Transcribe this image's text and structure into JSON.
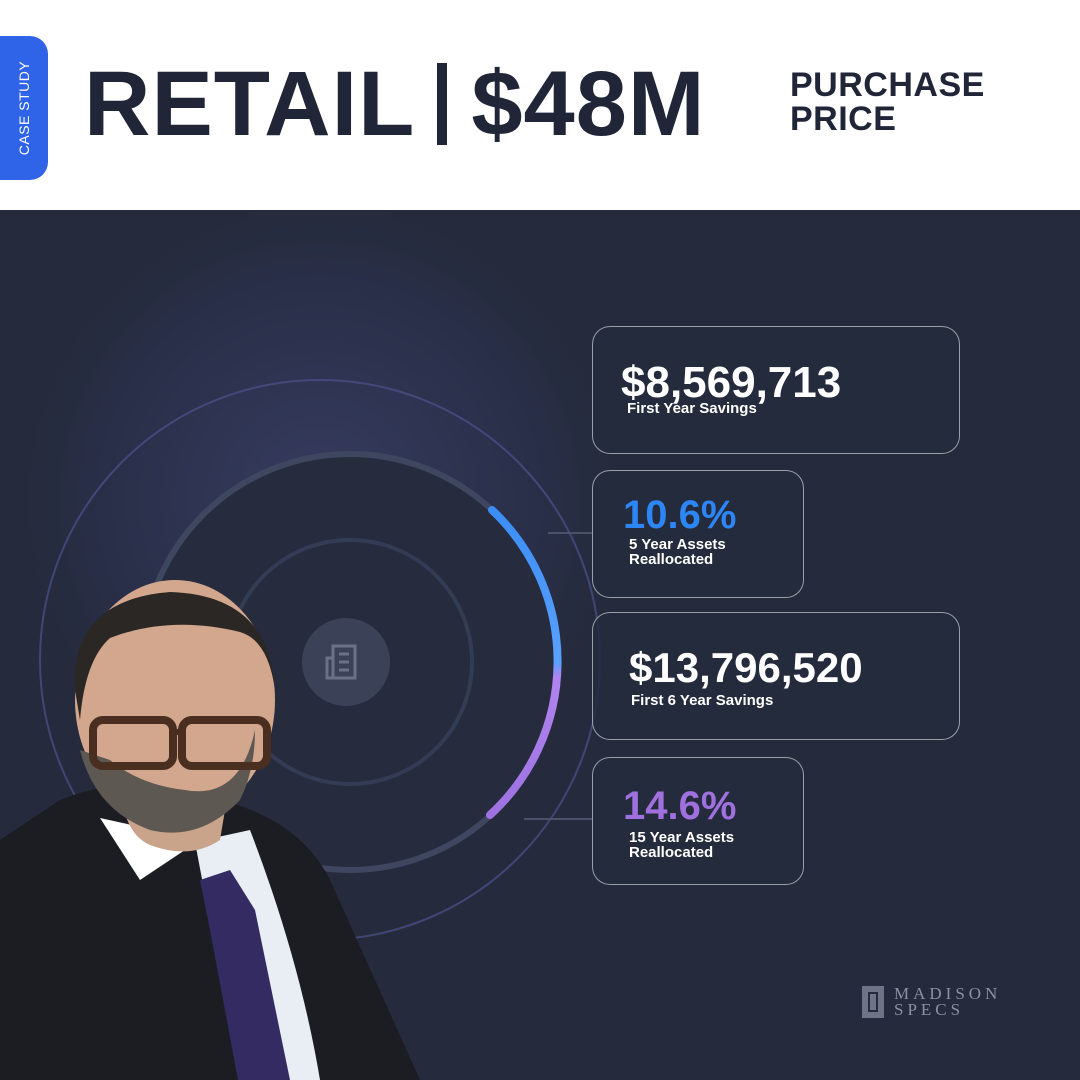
{
  "header": {
    "tag": "CASE STUDY",
    "sector": "RETAIL",
    "price": "$48M",
    "price_caption": "PURCHASE PRICE"
  },
  "stats": [
    {
      "value": "$8,569,713",
      "label": "First Year Savings"
    },
    {
      "value": "10.6%",
      "label": "5 Year Assets Reallocated"
    },
    {
      "value": "$13,796,520",
      "label": "First 6 Year Savings"
    },
    {
      "value": "14.6%",
      "label": "15 Year Assets Reallocated"
    }
  ],
  "center_icon": "building-icon",
  "logo": {
    "line1": "MADISON",
    "line2": "SPECS"
  },
  "colors": {
    "accent_blue": "#2d86f5",
    "accent_purple": "#a070df",
    "tag_blue": "#2f63e8",
    "panel_bg": "#252b3c",
    "headline_text": "#202637"
  }
}
